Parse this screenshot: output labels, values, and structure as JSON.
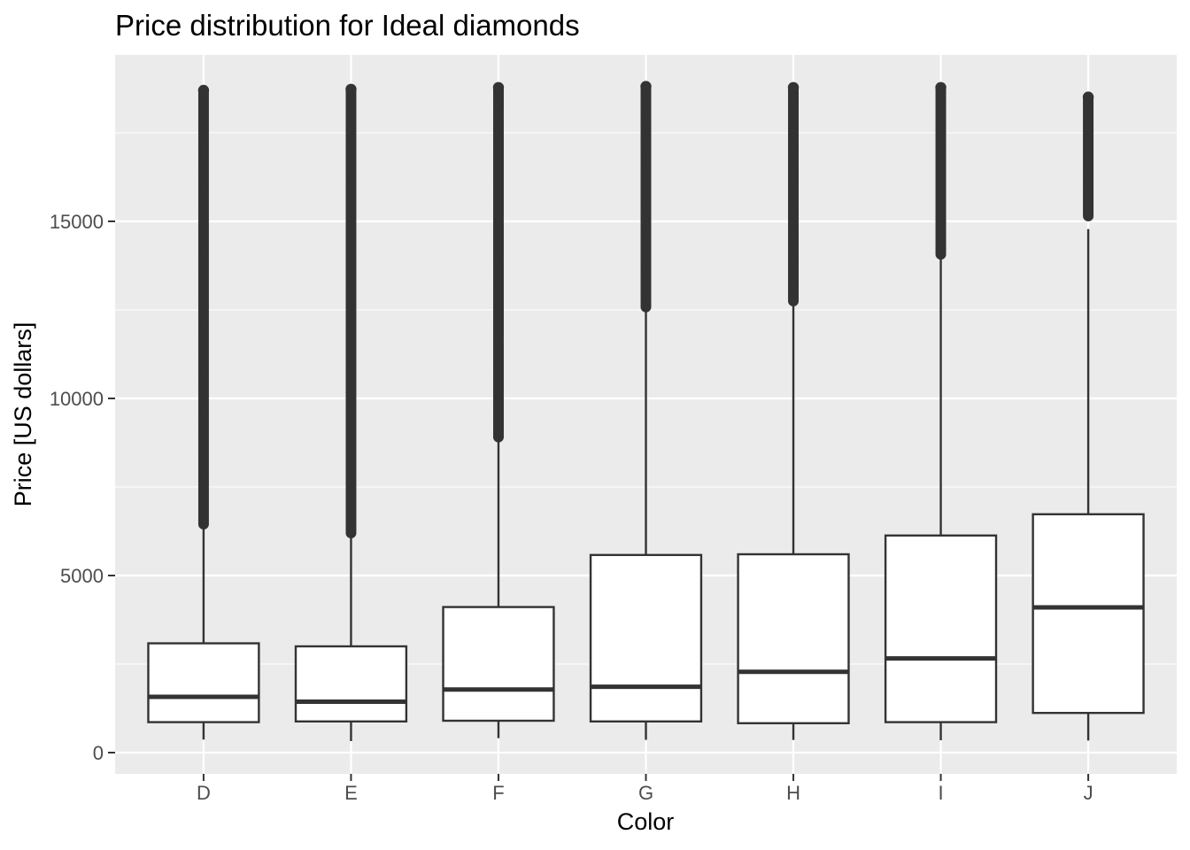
{
  "chart_data": {
    "type": "boxplot",
    "title": "Price distribution for Ideal diamonds",
    "xlabel": "Color",
    "ylabel": "Price [US dollars]",
    "categories": [
      "D",
      "E",
      "F",
      "G",
      "H",
      "I",
      "J"
    ],
    "ylim": [
      -600,
      19700
    ],
    "yticks": [
      0,
      5000,
      10000,
      15000
    ],
    "y_minor_ticks": [
      2500,
      7500,
      12500,
      17500
    ],
    "grid": true,
    "legend": "none",
    "colors": {
      "panel_background": "#ebebeb",
      "grid": "#ffffff",
      "box_fill": "#ffffff",
      "box_line": "#333333",
      "outlier": "#333333",
      "tick_text": "#4d4d4d"
    },
    "boxes": [
      {
        "category": "D",
        "whisker_low": 367,
        "q1": 860,
        "median": 1576,
        "q3": 3086,
        "whisker_high": 6420,
        "outliers_range": [
          6450,
          18700
        ]
      },
      {
        "category": "E",
        "whisker_low": 326,
        "q1": 880,
        "median": 1438,
        "q3": 3000,
        "whisker_high": 6170,
        "outliers_range": [
          6200,
          18730
        ]
      },
      {
        "category": "F",
        "whisker_low": 408,
        "q1": 900,
        "median": 1780,
        "q3": 4110,
        "whisker_high": 8890,
        "outliers_range": [
          8910,
          18780
        ]
      },
      {
        "category": "G",
        "whisker_low": 361,
        "q1": 880,
        "median": 1860,
        "q3": 5580,
        "whisker_high": 12560,
        "outliers_range": [
          12580,
          18810
        ]
      },
      {
        "category": "H",
        "whisker_low": 357,
        "q1": 830,
        "median": 2280,
        "q3": 5600,
        "whisker_high": 12730,
        "outliers_range": [
          12750,
          18780
        ]
      },
      {
        "category": "I",
        "whisker_low": 348,
        "q1": 860,
        "median": 2660,
        "q3": 6130,
        "whisker_high": 14050,
        "outliers_range": [
          14070,
          18780
        ]
      },
      {
        "category": "J",
        "whisker_low": 340,
        "q1": 1120,
        "median": 4100,
        "q3": 6730,
        "whisker_high": 14780,
        "outliers_range": [
          15150,
          18510
        ]
      }
    ]
  }
}
